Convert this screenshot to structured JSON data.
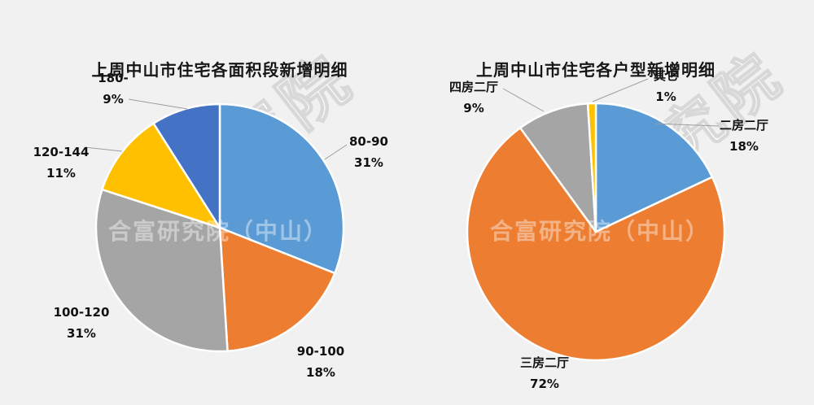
{
  "page": {
    "background": "#F1F1F1"
  },
  "watermark": {
    "center": "合富研究院（中山）",
    "diagonal": "究院"
  },
  "chart_data": [
    {
      "type": "pie",
      "title": "上周中山市住宅各面积段新增明细",
      "start_angle_deg": 0,
      "direction": "clockwise",
      "unit": "percent",
      "slices": [
        {
          "label": "80-90",
          "value": 31,
          "pct": "31%",
          "color": "#5B9BD5"
        },
        {
          "label": "90-100",
          "value": 18,
          "pct": "18%",
          "color": "#ED7D31"
        },
        {
          "label": "100-120",
          "value": 31,
          "pct": "31%",
          "color": "#A5A5A5"
        },
        {
          "label": "120-144",
          "value": 11,
          "pct": "11%",
          "color": "#FFC000"
        },
        {
          "label": "180-",
          "value": 9,
          "pct": "9%",
          "color": "#4472C4"
        }
      ]
    },
    {
      "type": "pie",
      "title": "上周中山市住宅各户型新增明细",
      "start_angle_deg": 0,
      "direction": "clockwise",
      "unit": "percent",
      "slices": [
        {
          "label": "二房二厅",
          "value": 18,
          "pct": "18%",
          "color": "#5B9BD5"
        },
        {
          "label": "三房二厅",
          "value": 72,
          "pct": "72%",
          "color": "#ED7D31"
        },
        {
          "label": "四房二厅",
          "value": 9,
          "pct": "9%",
          "color": "#A5A5A5"
        },
        {
          "label": "其它",
          "value": 1,
          "pct": "1%",
          "color": "#FFC000"
        }
      ]
    }
  ]
}
